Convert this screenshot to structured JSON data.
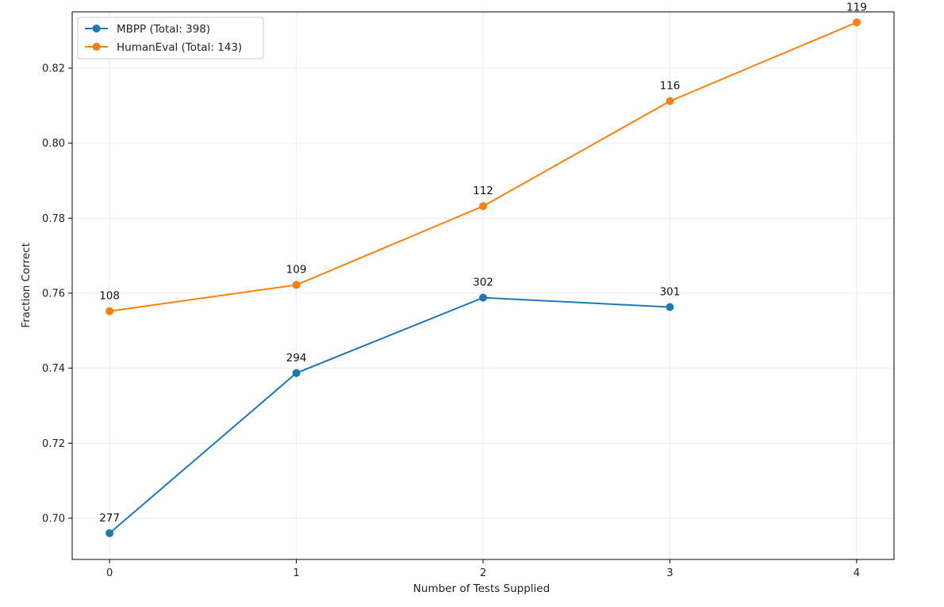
{
  "chart_data": {
    "type": "line",
    "xlabel": "Number of Tests Supplied",
    "ylabel": "Fraction Correct",
    "xlim": [
      -0.2,
      4.2
    ],
    "ylim": [
      0.689,
      0.835
    ],
    "x_ticks": [
      0,
      1,
      2,
      3,
      4
    ],
    "y_ticks": [
      0.7,
      0.72,
      0.74,
      0.76,
      0.78,
      0.8,
      0.82
    ],
    "y_tick_labels": [
      "0.70",
      "0.72",
      "0.74",
      "0.76",
      "0.78",
      "0.80",
      "0.82"
    ],
    "grid": true,
    "legend_position": "top-left",
    "series": [
      {
        "name": "MBPP (Total: 398)",
        "color": "#1f77b4",
        "x": [
          0,
          1,
          2,
          3
        ],
        "values": [
          0.696,
          0.7387,
          0.7588,
          0.7563
        ],
        "labels": [
          "277",
          "294",
          "302",
          "301"
        ]
      },
      {
        "name": "HumanEval (Total: 143)",
        "color": "#ff7f0e",
        "x": [
          0,
          1,
          2,
          3,
          4
        ],
        "values": [
          0.7552,
          0.7622,
          0.7832,
          0.8112,
          0.8322
        ],
        "labels": [
          "108",
          "109",
          "112",
          "116",
          "119"
        ]
      }
    ]
  }
}
